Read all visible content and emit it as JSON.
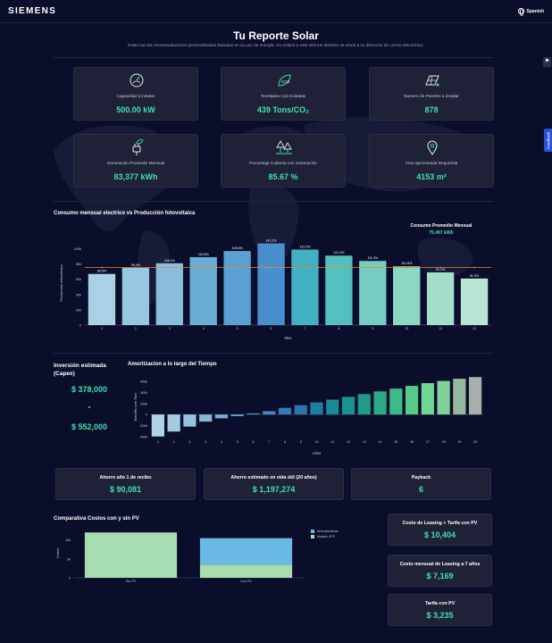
{
  "header": {
    "logo": "SIEMENS",
    "language": "Spanish"
  },
  "title": "Tu Reporte Solar",
  "subtitle": "Estas son las recomendaciones personalizadas basadas en su uso de energía. Un enlace a este informe también se envía a su dirección de correo electrónico.",
  "stats": [
    {
      "label": "Capacidad a instalar",
      "value": "500.00 kW",
      "icon": "gauge-icon"
    },
    {
      "label": "Toneladas Co2 Evitadas",
      "value": "439 Tons/CO₂",
      "icon": "co2-leaf-icon"
    },
    {
      "label": "Numero de Paneles a instalar",
      "value": "878",
      "icon": "solar-panel-icon"
    },
    {
      "label": "Generación Promedio Mensual",
      "value": "83,377 kWh",
      "icon": "plug-leaf-icon"
    },
    {
      "label": "Porcentaje Cubierto con Generación",
      "value": "85.67 %",
      "icon": "trees-icon"
    },
    {
      "label": "Área aproximada Requerida",
      "value": "4153 m²",
      "icon": "location-pin-icon"
    }
  ],
  "consumption": {
    "title": "Consumo mensual electrico vs Producción fotovoltaica",
    "avg_title": "Consumo Promedio Mensual",
    "avg_value": "75,497 kWh",
    "chart_data": {
      "type": "bar",
      "title": "Consumo mensual electrico vs Producción fotovoltaica",
      "xlabel": "Mes",
      "ylabel": "Producción fotovoltaica",
      "categories": [
        "1",
        "2",
        "3",
        "4",
        "5",
        "6",
        "7",
        "8",
        "9",
        "10",
        "11",
        "12"
      ],
      "values": [
        67000,
        75000,
        81000,
        89000,
        97000,
        107000,
        99000,
        91000,
        84000,
        77000,
        69000,
        61000
      ],
      "labels": [
        "89.8%",
        "99.4%",
        "106.1%",
        "115.8%",
        "128.6%",
        "141.2%",
        "131.3%",
        "121.2%",
        "111.4%",
        "101.8%",
        "91.1%",
        "81.3%"
      ],
      "colors": [
        "#a9d1e6",
        "#98c8e1",
        "#88bedc",
        "#6aaed6",
        "#5aa0d2",
        "#4a8fcd",
        "#44b0c4",
        "#54bfbf",
        "#74cdc0",
        "#8cd7c4",
        "#a1dfcb",
        "#b8e6d4"
      ],
      "line_value": 75497,
      "line_color": "#e8873a",
      "yticks": [
        "0",
        "20k",
        "40k",
        "60k",
        "80k",
        "100k"
      ],
      "ylim": [
        0,
        110000
      ]
    }
  },
  "investment": {
    "title": "Inversión estimada (Capex)",
    "min_value": "$ 378,000",
    "separator": "-",
    "max_value": "$ 552,000"
  },
  "amortization": {
    "title": "Amortizacion a lo largo del Tiempo",
    "chart_data": {
      "type": "bar",
      "title": "Amortizacion a lo largo del Tiempo",
      "xlabel": "Años",
      "ylabel": "Benefits over Time",
      "categories": [
        "0",
        "1",
        "2",
        "3",
        "4",
        "5",
        "6",
        "7",
        "8",
        "9",
        "10",
        "11",
        "12",
        "13",
        "14",
        "15",
        "16",
        "17",
        "18",
        "19",
        "20"
      ],
      "values": [
        -400000,
        -310000,
        -220000,
        -130000,
        -70000,
        -30000,
        20000,
        60000,
        120000,
        170000,
        220000,
        270000,
        320000,
        370000,
        420000,
        470000,
        520000,
        570000,
        610000,
        650000,
        680000
      ],
      "colors": [
        "#b1d2e8",
        "#a5cbe4",
        "#97c2de",
        "#86b8d8",
        "#74acd2",
        "#62a0cc",
        "#5294c6",
        "#4488bf",
        "#367cb8",
        "#2b74ae",
        "#1f7fa0",
        "#1a8a98",
        "#19948f",
        "#1f9c87",
        "#2aaa85",
        "#3dbb86",
        "#55cb8a",
        "#6fd793",
        "#80d09a",
        "#97b8a0",
        "#a8aeaa"
      ],
      "yticks": [
        "-400k",
        "-200k",
        "0",
        "200k",
        "400k",
        "600k"
      ],
      "ylim": [
        -420000,
        700000
      ]
    }
  },
  "savings": [
    {
      "label": "Ahorro año 1 de recibo",
      "value": "$ 90,081"
    },
    {
      "label": "Ahorro estimado en vida útil (20 años)",
      "value": "$ 1,197,274"
    },
    {
      "label": "Payback",
      "value": "6"
    }
  ],
  "comparison": {
    "title": "Comparativa Costos con y sin PV",
    "chart_data": {
      "type": "bar",
      "title": "Comparativa Costos con y sin PV",
      "ylabel": "Costos",
      "categories": [
        "Sin PV",
        "Con PV"
      ],
      "series": [
        {
          "name": "Modelo CFE",
          "values": [
            12000,
            3500
          ],
          "color": "#a7dcb0"
        },
        {
          "name": "Arrendamiento",
          "values": [
            0,
            7000
          ],
          "color": "#6cb8e4"
        }
      ],
      "yticks": [
        "0",
        "5k",
        "10k"
      ],
      "ylim": [
        0,
        13000
      ]
    }
  },
  "costs": [
    {
      "label": "Costo de Leasing + Tarifa con PV",
      "value": "$ 10,404"
    },
    {
      "label": "Costo mensual de Leasing a 7 años",
      "value": "$ 7,169"
    },
    {
      "label": "Tarifa con PV",
      "value": "$ 3,235"
    }
  ],
  "feedback_label": "Feedback",
  "colors": {
    "accent": "#3fe0b0",
    "background": "#0b0e2a",
    "card": "#1f2236"
  }
}
